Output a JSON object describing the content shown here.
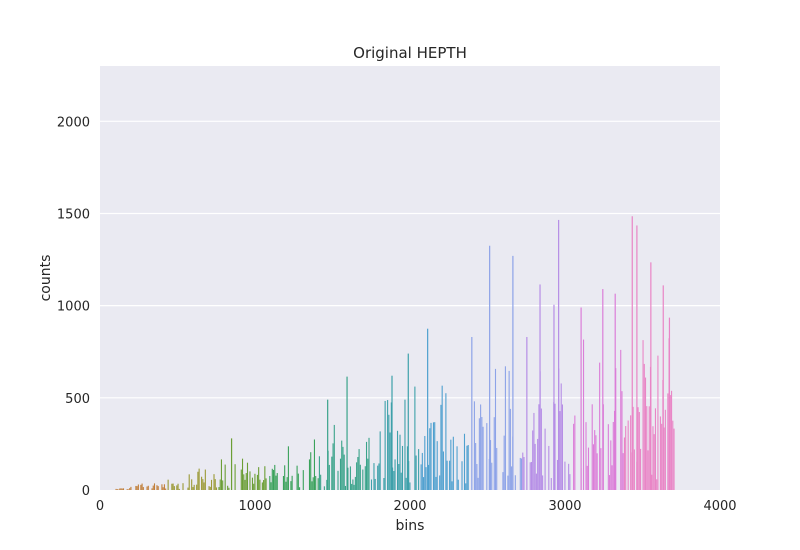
{
  "chart_data": {
    "type": "bar",
    "title": "Original HEPTH",
    "xlabel": "bins",
    "ylabel": "counts",
    "xlim": [
      0,
      4000
    ],
    "ylim": [
      0,
      2300
    ],
    "xticks": [
      0,
      1000,
      2000,
      3000,
      4000
    ],
    "yticks": [
      0,
      500,
      1000,
      1500,
      2000
    ],
    "xtick_labels": [
      "0",
      "1000",
      "2000",
      "3000",
      "4000"
    ],
    "ytick_labels": [
      "0",
      "500",
      "1000",
      "1500",
      "2000"
    ],
    "grid": true,
    "background_color": "#eaeaf2",
    "bin_range": [
      100,
      3700
    ],
    "bin_step": 8,
    "palette": [
      "#c17f3b",
      "#9b9a36",
      "#6b9e35",
      "#3aa25b",
      "#3aa38a",
      "#3ea1aa",
      "#4fa0cf",
      "#8da3e8",
      "#b68ee6",
      "#db7ed8",
      "#e985c6"
    ],
    "peaks": [
      {
        "bin": 845,
        "count": 280
      },
      {
        "bin": 1465,
        "count": 490
      },
      {
        "bin": 1590,
        "count": 615
      },
      {
        "bin": 1880,
        "count": 620
      },
      {
        "bin": 1985,
        "count": 740
      },
      {
        "bin": 2110,
        "count": 875
      },
      {
        "bin": 2395,
        "count": 830
      },
      {
        "bin": 2510,
        "count": 1325
      },
      {
        "bin": 2660,
        "count": 1270
      },
      {
        "bin": 2750,
        "count": 830
      },
      {
        "bin": 2835,
        "count": 1115
      },
      {
        "bin": 2925,
        "count": 1005
      },
      {
        "bin": 2955,
        "count": 1465
      },
      {
        "bin": 3100,
        "count": 990
      },
      {
        "bin": 3240,
        "count": 1090
      },
      {
        "bin": 3320,
        "count": 1065
      },
      {
        "bin": 3430,
        "count": 1485
      },
      {
        "bin": 3460,
        "count": 1435
      },
      {
        "bin": 3550,
        "count": 1235
      },
      {
        "bin": 3630,
        "count": 1110
      },
      {
        "bin": 3670,
        "count": 935
      }
    ],
    "envelope": [
      {
        "bin": 100,
        "max": 10
      },
      {
        "bin": 300,
        "max": 40
      },
      {
        "bin": 500,
        "max": 80
      },
      {
        "bin": 700,
        "max": 150
      },
      {
        "bin": 900,
        "max": 190
      },
      {
        "bin": 1100,
        "max": 230
      },
      {
        "bin": 1300,
        "max": 270
      },
      {
        "bin": 1500,
        "max": 380
      },
      {
        "bin": 1700,
        "max": 450
      },
      {
        "bin": 1900,
        "max": 520
      },
      {
        "bin": 2100,
        "max": 600
      },
      {
        "bin": 2300,
        "max": 650
      },
      {
        "bin": 2500,
        "max": 700
      },
      {
        "bin": 2700,
        "max": 760
      },
      {
        "bin": 2900,
        "max": 800
      },
      {
        "bin": 3100,
        "max": 820
      },
      {
        "bin": 3300,
        "max": 840
      },
      {
        "bin": 3500,
        "max": 860
      },
      {
        "bin": 3700,
        "max": 900
      }
    ]
  }
}
